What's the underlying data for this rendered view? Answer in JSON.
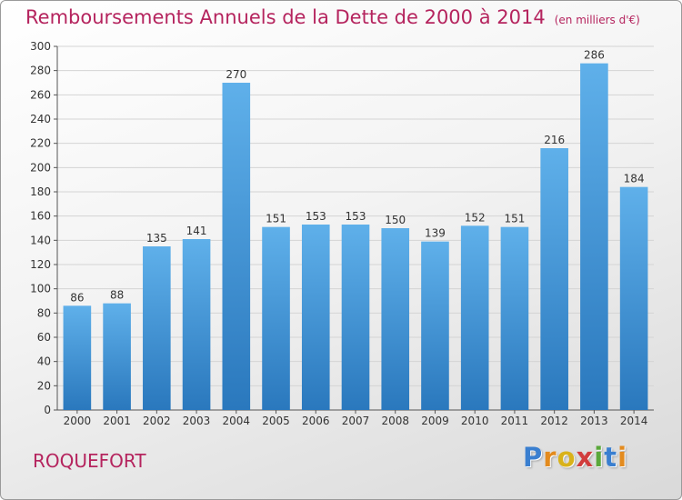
{
  "title": "Remboursements Annuels de la Dette de 2000 à 2014",
  "subtitle": "(en milliers d'€)",
  "place": "ROQUEFORT",
  "logo": {
    "letters": [
      "P",
      "r",
      "o",
      "x",
      "i",
      "t",
      "i"
    ],
    "colors": [
      "#3a7fd0",
      "#e38b1f",
      "#d9b21a",
      "#d13c3c",
      "#5aa83a",
      "#3a7fd0",
      "#e38b1f"
    ]
  },
  "colors": {
    "title": "#b5245e",
    "bar_top": "#5fb0ea",
    "bar_bottom": "#2a78bd",
    "grid": "#d4d4d4"
  },
  "chart_data": {
    "type": "bar",
    "categories": [
      "2000",
      "2001",
      "2002",
      "2003",
      "2004",
      "2005",
      "2006",
      "2007",
      "2008",
      "2009",
      "2010",
      "2011",
      "2012",
      "2013",
      "2014"
    ],
    "values": [
      86,
      88,
      135,
      141,
      270,
      151,
      153,
      153,
      150,
      139,
      152,
      151,
      216,
      286,
      184
    ],
    "title": "Remboursements Annuels de la Dette de 2000 à 2014",
    "xlabel": "",
    "ylabel": "",
    "ylim": [
      0,
      300
    ],
    "yticks": [
      0,
      20,
      40,
      60,
      80,
      100,
      120,
      140,
      160,
      180,
      200,
      220,
      240,
      260,
      280,
      300
    ],
    "grid": true,
    "legend": "none"
  }
}
